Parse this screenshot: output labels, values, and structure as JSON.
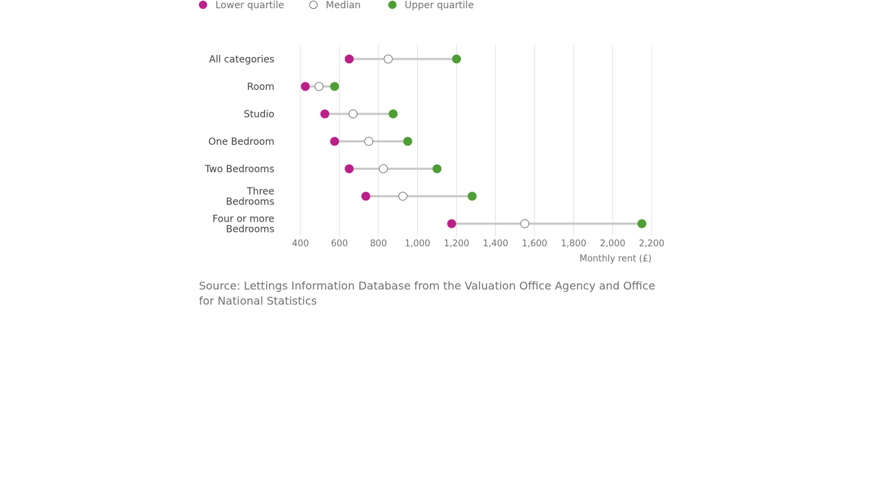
{
  "chart_data": {
    "type": "dot-range",
    "legend": [
      {
        "key": "lower",
        "label": "Lower quartile",
        "color": "#bc1f8a"
      },
      {
        "key": "median",
        "label": "Median",
        "color": "#ffffff"
      },
      {
        "key": "upper",
        "label": "Upper quartile",
        "color": "#4d9e34"
      }
    ],
    "categories": [
      {
        "label_lines": [
          "All categories"
        ],
        "lower": 650,
        "median": 850,
        "upper": 1200
      },
      {
        "label_lines": [
          "Room"
        ],
        "lower": 425,
        "median": 495,
        "upper": 575
      },
      {
        "label_lines": [
          "Studio"
        ],
        "lower": 525,
        "median": 670,
        "upper": 875
      },
      {
        "label_lines": [
          "One Bedroom"
        ],
        "lower": 575,
        "median": 750,
        "upper": 950
      },
      {
        "label_lines": [
          "Two Bedrooms"
        ],
        "lower": 650,
        "median": 825,
        "upper": 1100
      },
      {
        "label_lines": [
          "Three",
          "Bedrooms"
        ],
        "lower": 735,
        "median": 925,
        "upper": 1280
      },
      {
        "label_lines": [
          "Four or more",
          "Bedrooms"
        ],
        "lower": 1175,
        "median": 1550,
        "upper": 2150
      }
    ],
    "x_ticks": [
      400,
      600,
      800,
      1000,
      1200,
      1400,
      1600,
      1800,
      2000,
      2200
    ],
    "x_tick_labels": [
      "400",
      "600",
      "800",
      "1,000",
      "1,200",
      "1,400",
      "1,600",
      "1,800",
      "2,000",
      "2,200"
    ],
    "xlim": [
      400,
      2200
    ],
    "xlabel": "Monthly rent (£)",
    "grid": "vertical"
  },
  "source_text": "Source: Lettings Information Database from the Valuation Office Agency and Office for National Statistics"
}
